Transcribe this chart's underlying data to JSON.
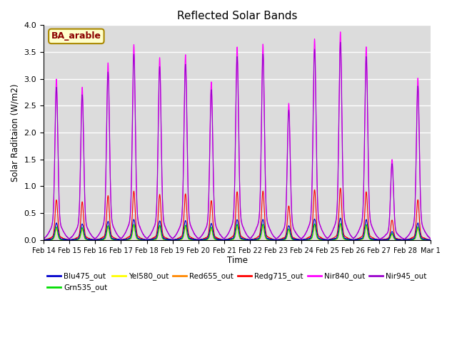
{
  "title": "Reflected Solar Bands",
  "ylabel": "Solar Raditaion (W/m2)",
  "xlabel": "Time",
  "annotation": "BA_arable",
  "ylim": [
    0,
    4.0
  ],
  "yticks": [
    0.0,
    0.5,
    1.0,
    1.5,
    2.0,
    2.5,
    3.0,
    3.5,
    4.0
  ],
  "background_color": "#dcdcdc",
  "series_order": [
    "Blu475_out",
    "Grn535_out",
    "Yel580_out",
    "Red655_out",
    "Redg715_out",
    "Nir840_out",
    "Nir945_out"
  ],
  "series": {
    "Blu475_out": {
      "color": "#0000cc",
      "base_scale": 0.105,
      "peak_scale": 0.105
    },
    "Grn535_out": {
      "color": "#00dd00",
      "base_scale": 0.08,
      "peak_scale": 0.08
    },
    "Yel580_out": {
      "color": "#ffff00",
      "base_scale": 0.075,
      "peak_scale": 0.075
    },
    "Red655_out": {
      "color": "#ff8800",
      "base_scale": 0.072,
      "peak_scale": 0.072
    },
    "Redg715_out": {
      "color": "#ff0000",
      "base_scale": 0.25,
      "peak_scale": 0.25
    },
    "Nir840_out": {
      "color": "#ff00ff",
      "base_scale": 1.0,
      "peak_scale": 1.0
    },
    "Nir945_out": {
      "color": "#9900cc",
      "base_scale": 0.95,
      "peak_scale": 0.95
    }
  },
  "day_peaks_nir840": [
    3.0,
    2.85,
    3.3,
    3.65,
    3.4,
    3.45,
    2.95,
    3.6,
    3.65,
    2.55,
    3.75,
    3.88,
    3.6,
    1.5,
    3.02
  ],
  "n_days": 15,
  "points_per_day": 144,
  "xtick_labels": [
    "Feb 14",
    "Feb 15",
    "Feb 16",
    "Feb 17",
    "Feb 18",
    "Feb 19",
    "Feb 20",
    "Feb 21",
    "Feb 22",
    "Feb 23",
    "Feb 24",
    "Feb 25",
    "Feb 26",
    "Feb 27",
    "Feb 28",
    "Mar 1"
  ]
}
